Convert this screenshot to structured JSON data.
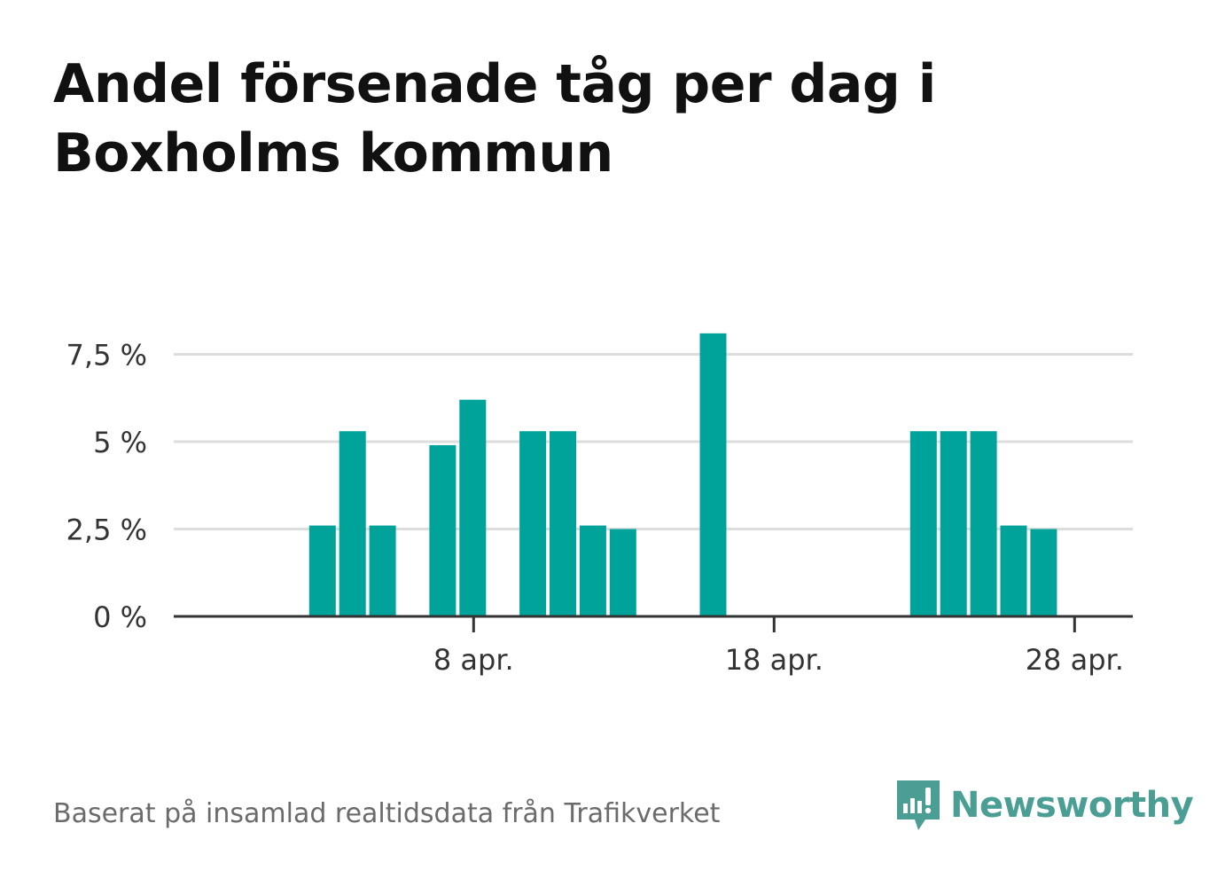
{
  "title_line1": "Andel försenade tåg per dag i",
  "title_line2": "Boxholms kommun",
  "footer": {
    "source": "Baserat på insamlad realtidsdata från Trafikverket",
    "brand": "Newsworthy",
    "brand_icon": "bar-chart-speech-bubble-icon"
  },
  "colors": {
    "bar": "#00a39a",
    "grid": "#dddddd",
    "axis": "#333333",
    "brand": "#4a9e93"
  },
  "chart_data": {
    "type": "bar",
    "x": [
      "1 apr.",
      "2 apr.",
      "3 apr.",
      "4 apr.",
      "5 apr.",
      "6 apr.",
      "7 apr.",
      "8 apr.",
      "9 apr.",
      "10 apr.",
      "11 apr.",
      "12 apr.",
      "13 apr.",
      "14 apr.",
      "15 apr.",
      "16 apr.",
      "17 apr.",
      "18 apr.",
      "19 apr.",
      "20 apr.",
      "21 apr.",
      "22 apr.",
      "23 apr.",
      "24 apr.",
      "25 apr.",
      "26 apr.",
      "27 apr.",
      "28 apr.",
      "29 apr.",
      "30 apr."
    ],
    "values": [
      0,
      0,
      2.6,
      5.3,
      2.6,
      0,
      4.9,
      6.2,
      0,
      5.3,
      5.3,
      2.6,
      2.5,
      0,
      0,
      8.1,
      0,
      0,
      0,
      0,
      0,
      0,
      5.3,
      5.3,
      5.3,
      2.6,
      2.5,
      0,
      0,
      0
    ],
    "unit": "%",
    "ylim": [
      0,
      8.1
    ],
    "yticks": [
      0,
      2.5,
      5,
      7.5
    ],
    "ytick_labels": [
      "0 %",
      "2,5 %",
      "5 %",
      "7,5 %"
    ],
    "xticks": [
      "8 apr.",
      "18 apr.",
      "28 apr."
    ],
    "grid": true,
    "legend": "none"
  }
}
